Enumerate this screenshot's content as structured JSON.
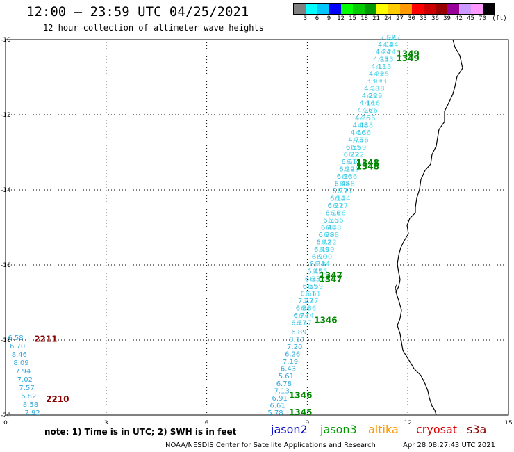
{
  "header": {
    "title": "12:00 — 23:59 UTC 04/25/2021",
    "subtitle": "12 hour collection of altimeter wave heights"
  },
  "legend": {
    "unit_label": "(ft)",
    "bins": [
      {
        "label": "",
        "color": "#808080"
      },
      {
        "label": "3",
        "color": "#00ffff"
      },
      {
        "label": "6",
        "color": "#00c8ff"
      },
      {
        "label": "9",
        "color": "#0000ff"
      },
      {
        "label": "12",
        "color": "#00ff00"
      },
      {
        "label": "15",
        "color": "#00cc00"
      },
      {
        "label": "18",
        "color": "#009900"
      },
      {
        "label": "21",
        "color": "#ffff00"
      },
      {
        "label": "24",
        "color": "#ffcc00"
      },
      {
        "label": "27",
        "color": "#ff9900"
      },
      {
        "label": "30",
        "color": "#ff0000"
      },
      {
        "label": "33",
        "color": "#cc0000"
      },
      {
        "label": "36",
        "color": "#990000"
      },
      {
        "label": "39",
        "color": "#990099"
      },
      {
        "label": "42",
        "color": "#cc99ff"
      },
      {
        "label": "45",
        "color": "#ff99ff"
      },
      {
        "label": "70",
        "color": "#000000"
      }
    ]
  },
  "map": {
    "x_range": [
      0,
      15
    ],
    "y_range": [
      -20,
      -10
    ],
    "x_ticks": [
      "0",
      "3",
      "6",
      "9",
      "12",
      "15"
    ],
    "y_ticks": [
      "-10",
      "-12",
      "-14",
      "-16",
      "-18",
      "-20"
    ],
    "coast_color": "#000000",
    "time_labels": [
      {
        "text": "1349",
        "x": 12.0,
        "y": -10.45,
        "color": "#008800"
      },
      {
        "text": "1349",
        "x": 12.0,
        "y": -10.57,
        "color": "#008800"
      },
      {
        "text": "1348",
        "x": 10.8,
        "y": -13.35,
        "color": "#008800"
      },
      {
        "text": "1348",
        "x": 10.8,
        "y": -13.45,
        "color": "#008800"
      },
      {
        "text": "1347",
        "x": 9.7,
        "y": -16.35,
        "color": "#008800"
      },
      {
        "text": "1347",
        "x": 9.7,
        "y": -16.45,
        "color": "#008800"
      },
      {
        "text": "1346",
        "x": 9.55,
        "y": -17.55,
        "color": "#008800"
      },
      {
        "text": "1346",
        "x": 8.8,
        "y": -19.55,
        "color": "#008800"
      },
      {
        "text": "1345",
        "x": 8.8,
        "y": -20.0,
        "color": "#008800"
      },
      {
        "text": "2211",
        "x": 1.2,
        "y": -18.05,
        "color": "#880000"
      },
      {
        "text": "2210",
        "x": 1.55,
        "y": -19.65,
        "color": "#880000"
      }
    ],
    "track_a": [
      "7.97",
      "4.04",
      "4.24",
      "4.23",
      "4.13",
      "4.25",
      "3.93",
      "4.38",
      "4.29",
      "4.16",
      "4.26",
      "4.36",
      "4.48",
      "4.56",
      "4.76",
      "6.59",
      "6.22",
      "6.61",
      "6.29",
      "6.36",
      "6.48",
      "6.77",
      "6.14",
      "6.27",
      "6.26",
      "6.36",
      "6.48",
      "6.98",
      "6.42",
      "6.49",
      "6.90",
      "6.84",
      "6.45",
      "6.33",
      "6.59",
      "6.61",
      "7.27",
      "6.86",
      "6.74",
      "6.57"
    ],
    "track_a_start": {
      "x": 11.4,
      "y": -10.0
    },
    "track_a_end": {
      "x": 8.75,
      "y": -17.6
    },
    "track_b": [
      "6.89",
      "8.13",
      "7.20",
      "6.26",
      "7.19",
      "6.43",
      "5.61",
      "6.78",
      "7.13",
      "6.91",
      "6.61",
      "5.78"
    ],
    "track_b_start": {
      "x": 8.75,
      "y": -17.85
    },
    "track_b_end": {
      "x": 8.05,
      "y": -20.0
    },
    "track_c": [
      "6.58",
      "6.70",
      "8.46",
      "8.09",
      "7.94",
      "7.02",
      "7.57",
      "6.82",
      "8.58",
      "7.92"
    ],
    "track_c_start": {
      "x": 0.3,
      "y": -18.0
    },
    "track_c_end": {
      "x": 0.8,
      "y": -20.0
    }
  },
  "footer": {
    "note": "note: 1) Time is in UTC; 2) SWH is in feet",
    "satellites": [
      {
        "name": "jason2",
        "color": "#0000cc"
      },
      {
        "name": "jason3",
        "color": "#009900"
      },
      {
        "name": "altika",
        "color": "#ff9900"
      },
      {
        "name": "cryosat",
        "color": "#dd0000"
      },
      {
        "name": "s3a",
        "color": "#880000"
      }
    ],
    "credit": "NOAA/NESDIS Center for Satellite Applications and Research",
    "credit_date": "Apr 28 08:27:43 UTC 2021"
  }
}
